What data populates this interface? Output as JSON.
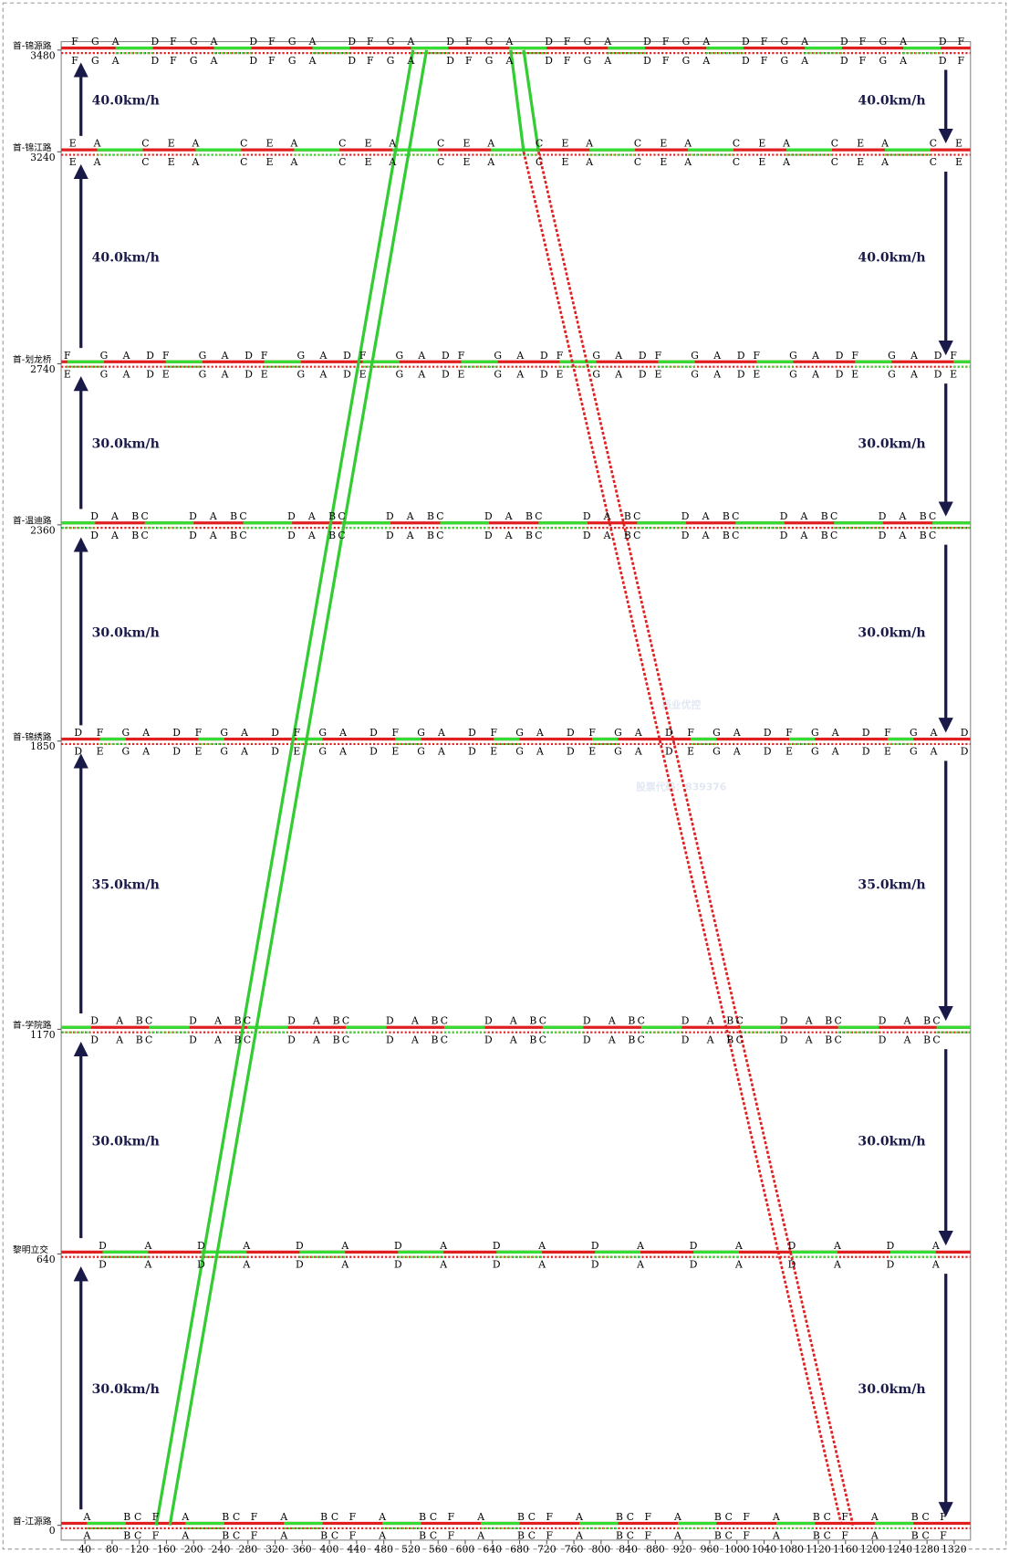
{
  "chart_data": {
    "type": "time-space",
    "xlim": [
      5,
      1344
    ],
    "xticks": [
      40,
      80,
      120,
      160,
      200,
      240,
      280,
      320,
      360,
      400,
      440,
      480,
      520,
      560,
      600,
      640,
      680,
      720,
      760,
      800,
      840,
      880,
      920,
      960,
      1000,
      1040,
      1080,
      1120,
      1160,
      1200,
      1240,
      1280,
      1320
    ],
    "ylim": [
      -35,
      3500
    ],
    "cycle": 145,
    "intersections": [
      {
        "name": "首-锦源路",
        "distance": 3480,
        "top_green": [
          85,
          140
        ],
        "bottom_green": [
          85,
          143
        ],
        "top_phases": [
          {
            "label": "D",
            "t": -2
          },
          {
            "label": "F",
            "t": 25
          },
          {
            "label": "G",
            "t": 55
          },
          {
            "label": "A",
            "t": 85
          }
        ],
        "bottom_phases": [
          {
            "label": "D",
            "t": -2
          },
          {
            "label": "F",
            "t": 25
          },
          {
            "label": "G",
            "t": 55
          },
          {
            "label": "A",
            "t": 85
          }
        ]
      },
      {
        "name": "首-锦江路",
        "distance": 3240,
        "top_green": [
          58,
          125
        ],
        "bottom_green": [
          58,
          125
        ],
        "top_phases": [
          {
            "label": "E",
            "t": 22
          },
          {
            "label": "A",
            "t": 58
          },
          {
            "label": "C",
            "t": 129
          }
        ],
        "bottom_phases": [
          {
            "label": "E",
            "t": 22
          },
          {
            "label": "A",
            "t": 58
          },
          {
            "label": "C",
            "t": 129
          }
        ]
      },
      {
        "name": "首-划龙桥",
        "distance": 2740,
        "top_green": [
          14,
          68
        ],
        "bottom_green": [
          14,
          68
        ],
        "top_phases": [
          {
            "label": "F",
            "t": 14
          },
          {
            "label": "G",
            "t": 68
          },
          {
            "label": "A",
            "t": 101
          },
          {
            "label": "D",
            "t": 136
          }
        ],
        "bottom_phases": [
          {
            "label": "E",
            "t": 14
          },
          {
            "label": "G",
            "t": 68
          },
          {
            "label": "A",
            "t": 101
          },
          {
            "label": "D",
            "t": 136
          }
        ]
      },
      {
        "name": "首-温迪路",
        "distance": 2360,
        "top_green": [
          128,
          200
        ],
        "bottom_green": [
          128,
          200
        ],
        "top_phases": [
          {
            "label": "D",
            "t": 54
          },
          {
            "label": "A",
            "t": 84
          },
          {
            "label": "B",
            "t": 114
          },
          {
            "label": "C",
            "t": 128
          }
        ],
        "bottom_phases": [
          {
            "label": "D",
            "t": 54
          },
          {
            "label": "A",
            "t": 84
          },
          {
            "label": "B",
            "t": 114
          },
          {
            "label": "C",
            "t": 128
          }
        ]
      },
      {
        "name": "首-锦绣路",
        "distance": 1850,
        "top_green": [
          62,
          100
        ],
        "bottom_green": [
          62,
          100
        ],
        "top_phases": [
          {
            "label": "D",
            "t": 30
          },
          {
            "label": "F",
            "t": 62
          },
          {
            "label": "G",
            "t": 100
          },
          {
            "label": "A",
            "t": 130
          }
        ],
        "bottom_phases": [
          {
            "label": "D",
            "t": 30
          },
          {
            "label": "E",
            "t": 62
          },
          {
            "label": "G",
            "t": 100
          },
          {
            "label": "A",
            "t": 130
          }
        ]
      },
      {
        "name": "首-学院路",
        "distance": 1170,
        "top_green": [
          134,
          194
        ],
        "bottom_green": [
          134,
          194
        ],
        "top_phases": [
          {
            "label": "D",
            "t": 54
          },
          {
            "label": "A",
            "t": 91
          },
          {
            "label": "B",
            "t": 120
          },
          {
            "label": "C",
            "t": 134
          }
        ],
        "bottom_phases": [
          {
            "label": "D",
            "t": 54
          },
          {
            "label": "A",
            "t": 91
          },
          {
            "label": "B",
            "t": 120
          },
          {
            "label": "C",
            "t": 134
          }
        ]
      },
      {
        "name": "黎明立交",
        "distance": 640,
        "top_green": [
          66,
          133
        ],
        "bottom_green": [
          66,
          133
        ],
        "top_phases": [
          {
            "label": "D",
            "t": 66
          },
          {
            "label": "A",
            "t": 133
          }
        ],
        "bottom_phases": [
          {
            "label": "D",
            "t": 66
          },
          {
            "label": "A",
            "t": 133
          }
        ]
      },
      {
        "name": "首-江源路",
        "distance": 0,
        "top_green": [
          43,
          100
        ],
        "bottom_green": [
          43,
          100
        ],
        "top_phases": [
          {
            "label": "A",
            "t": 43
          },
          {
            "label": "B",
            "t": 102
          },
          {
            "label": "C",
            "t": 118
          },
          {
            "label": "F",
            "t": 144
          }
        ],
        "bottom_phases": [
          {
            "label": "A",
            "t": 43
          },
          {
            "label": "B",
            "t": 102
          },
          {
            "label": "C",
            "t": 118
          },
          {
            "label": "F",
            "t": 144
          }
        ]
      }
    ],
    "speed_labels": [
      "40.0km/h",
      "40.0km/h",
      "30.0km/h",
      "30.0km/h",
      "35.0km/h",
      "30.0km/h",
      "30.0km/h"
    ],
    "series": [
      {
        "color": "#33cc33",
        "dash": false,
        "x": [
          145,
          523
        ],
        "y": [
          0,
          3480
        ]
      },
      {
        "color": "#33cc33",
        "dash": false,
        "x": [
          165,
          543
        ],
        "y": [
          0,
          3480
        ]
      },
      {
        "color": "#33cc33",
        "dash": false,
        "x": [
          667,
          686
        ],
        "y": [
          3480,
          3240
        ]
      },
      {
        "color": "#33cc33",
        "dash": false,
        "x": [
          686,
          708
        ],
        "y": [
          3480,
          3240
        ]
      },
      {
        "color": "#e02020",
        "dash": true,
        "x": [
          686,
          1154
        ],
        "y": [
          3240,
          0
        ]
      },
      {
        "color": "#e02020",
        "dash": true,
        "x": [
          708,
          1171
        ],
        "y": [
          3240,
          0
        ]
      }
    ],
    "watermark": [
      "振业优控",
      "股票代码：839376"
    ]
  }
}
